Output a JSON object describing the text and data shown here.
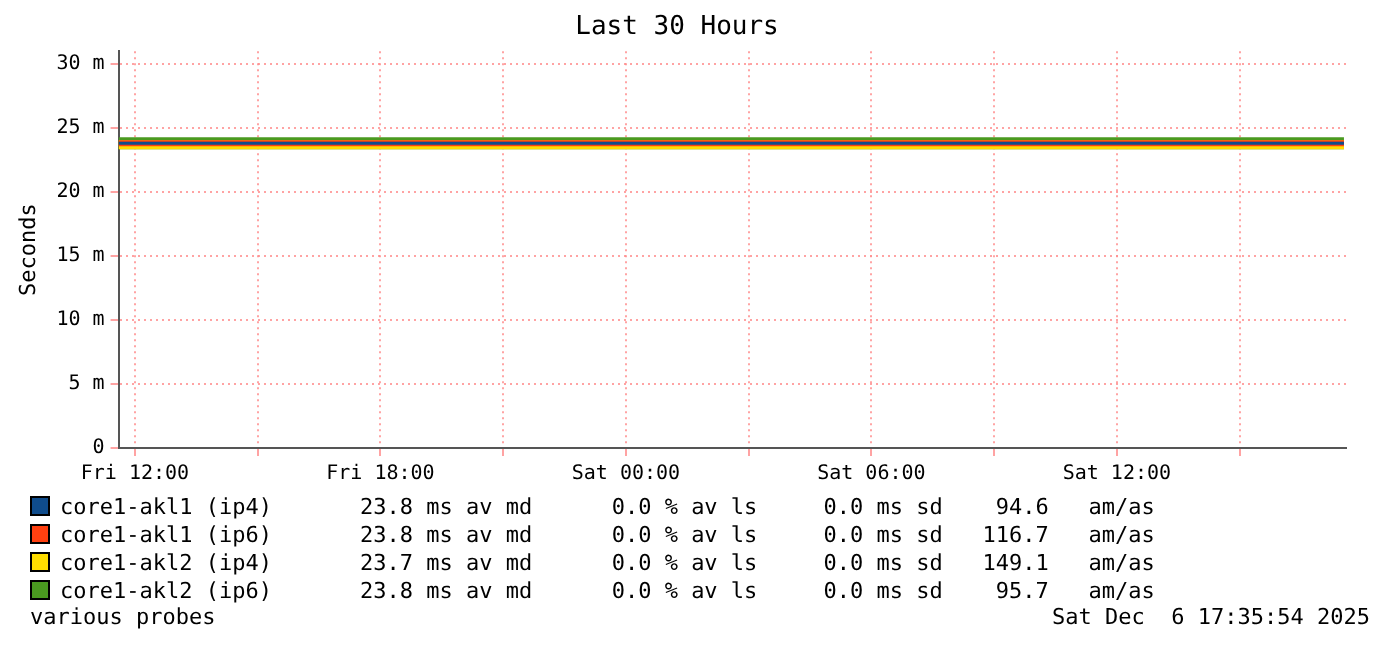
{
  "chart_data": {
    "type": "line",
    "title": "Last 30 Hours",
    "ylabel": "Seconds",
    "x": [
      "2025-12-05T11:36",
      "2025-12-05T15:00",
      "2025-12-05T18:00",
      "2025-12-05T21:00",
      "2025-12-06T00:00",
      "2025-12-06T03:00",
      "2025-12-06T06:00",
      "2025-12-06T09:00",
      "2025-12-06T12:00",
      "2025-12-06T15:00",
      "2025-12-06T17:33"
    ],
    "series": [
      {
        "name": "core1-akl1 (ip4)",
        "color": "#0f4c8c",
        "values": [
          23.8,
          23.8,
          23.8,
          23.8,
          23.8,
          23.8,
          23.8,
          23.8,
          23.8,
          23.8,
          23.8
        ]
      },
      {
        "name": "core1-akl1 (ip6)",
        "color": "#ff4010",
        "values": [
          23.8,
          23.8,
          23.8,
          23.8,
          23.8,
          23.8,
          23.8,
          23.8,
          23.8,
          23.8,
          23.8
        ]
      },
      {
        "name": "core1-akl2 (ip4)",
        "color": "#ffdd00",
        "values": [
          23.7,
          23.7,
          23.7,
          23.7,
          23.7,
          23.7,
          23.7,
          23.7,
          23.7,
          23.7,
          23.7
        ]
      },
      {
        "name": "core1-akl2 (ip6)",
        "color": "#4a9a20",
        "values": [
          23.8,
          23.8,
          23.8,
          23.8,
          23.8,
          23.8,
          23.8,
          23.8,
          23.8,
          23.8,
          23.8
        ]
      }
    ],
    "xlim": [
      "2025-12-05T11:36",
      "2025-12-06T17:36"
    ],
    "xticks": [
      {
        "value": "2025-12-05T12:00",
        "label": "Fri 12:00"
      },
      {
        "value": "2025-12-05T15:00",
        "label": null
      },
      {
        "value": "2025-12-05T18:00",
        "label": "Fri 18:00"
      },
      {
        "value": "2025-12-05T21:00",
        "label": null
      },
      {
        "value": "2025-12-06T00:00",
        "label": "Sat 00:00"
      },
      {
        "value": "2025-12-06T03:00",
        "label": null
      },
      {
        "value": "2025-12-06T06:00",
        "label": "Sat 06:00"
      },
      {
        "value": "2025-12-06T09:00",
        "label": null
      },
      {
        "value": "2025-12-06T12:00",
        "label": "Sat 12:00"
      },
      {
        "value": "2025-12-06T15:00",
        "label": null
      }
    ],
    "ylim": [
      0,
      31
    ],
    "yticks": [
      0,
      {
        "value": 5,
        "label": "5 m"
      },
      {
        "value": 10,
        "label": "10 m"
      },
      {
        "value": 15,
        "label": "15 m"
      },
      {
        "value": 20,
        "label": "20 m"
      },
      {
        "value": 25,
        "label": "25 m"
      },
      {
        "value": 30,
        "label": "30 m"
      }
    ],
    "grid": true,
    "legend": "bottom",
    "marker": "none",
    "line_style": "solid",
    "annotations": [
      "23.8 ms av md      0.0 % av ls     0.0 ms sd    94.6   am/as",
      "23.8 ms av md      0.0 % av ls     0.0 ms sd   116.7   am/as",
      "23.7 ms av md      0.0 % av ls     0.0 ms sd   149.1   am/as",
      "23.8 ms av md      0.0 % av ls     0.0 ms sd    95.7   am/as",
      "various probes",
      "Sat Dec  6 17:35:54 2025"
    ]
  }
}
